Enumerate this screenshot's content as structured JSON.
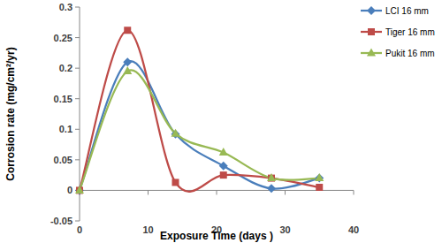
{
  "chart_data": {
    "type": "line",
    "x_label": "Exposure Time (days )",
    "y_label": "Corrosion rate (mg/cm²/yr)",
    "x": [
      0,
      7,
      14,
      21,
      28,
      35
    ],
    "series": [
      {
        "name": "LCI 16 mm",
        "color": "#4a7ebb",
        "marker": "diamond",
        "line_style": "smooth",
        "values": [
          0,
          0.21,
          0.092,
          0.04,
          0.003,
          0.02
        ]
      },
      {
        "name": "Tiger 16 mm",
        "color": "#be4b48",
        "marker": "square",
        "line_style": "smooth",
        "values": [
          0,
          0.262,
          0.013,
          0.025,
          0.02,
          0.005
        ]
      },
      {
        "name": "Pukit 16 mm",
        "color": "#98b954",
        "marker": "triangle",
        "line_style": "smooth",
        "values": [
          0,
          0.195,
          0.093,
          0.062,
          0.02,
          0.02
        ]
      }
    ],
    "xlim": [
      0,
      40
    ],
    "xticks": [
      0,
      10,
      20,
      30,
      40
    ],
    "ylim": [
      -0.05,
      0.3
    ],
    "yticks": [
      -0.05,
      0,
      0.05,
      0.1,
      0.15,
      0.2,
      0.25,
      0.3
    ],
    "grid": false,
    "legend": "top-right"
  }
}
